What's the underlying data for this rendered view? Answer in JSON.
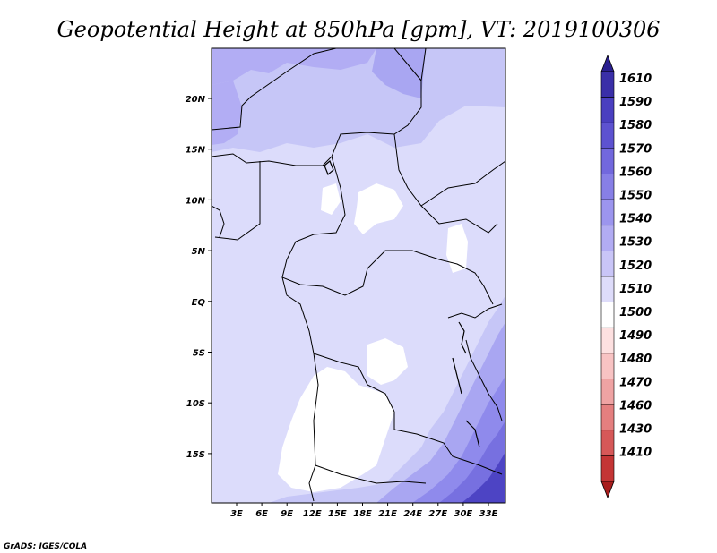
{
  "title": "Geopotential Height at 850hPa [gpm], VT: 2019100306",
  "credit": "GrADS: IGES/COLA",
  "map": {
    "lon_labels": [
      "3E",
      "6E",
      "9E",
      "12E",
      "15E",
      "18E",
      "21E",
      "24E",
      "27E",
      "30E",
      "33E"
    ],
    "lat_labels": [
      "20N",
      "15N",
      "10N",
      "5N",
      "EQ",
      "5S",
      "10S",
      "15S"
    ]
  },
  "colorbar": {
    "levels": [
      "1610",
      "1590",
      "1580",
      "1570",
      "1560",
      "1550",
      "1540",
      "1530",
      "1520",
      "1510",
      "1500",
      "1490",
      "1480",
      "1470",
      "1460",
      "1430",
      "1410"
    ],
    "colors": [
      "#2a1f8f",
      "#3a2fa8",
      "#4a3fc0",
      "#5d52d0",
      "#7268dd",
      "#877fe6",
      "#9c95ee",
      "#b2acf3",
      "#c9c5f7",
      "#dedcfa",
      "#ffffff",
      "#fde0e0",
      "#f8c3c3",
      "#efa3a3",
      "#e47f7f",
      "#d65858",
      "#c43535",
      "#a81d1d"
    ]
  },
  "fill_colors": {
    "white": "#ffffff",
    "lightest": "#dcdcfb",
    "light": "#c6c6f7",
    "medium": "#a9a6f2",
    "darker": "#8f8aec",
    "dark": "#7770e0",
    "darkest": "#4d44c4"
  }
}
